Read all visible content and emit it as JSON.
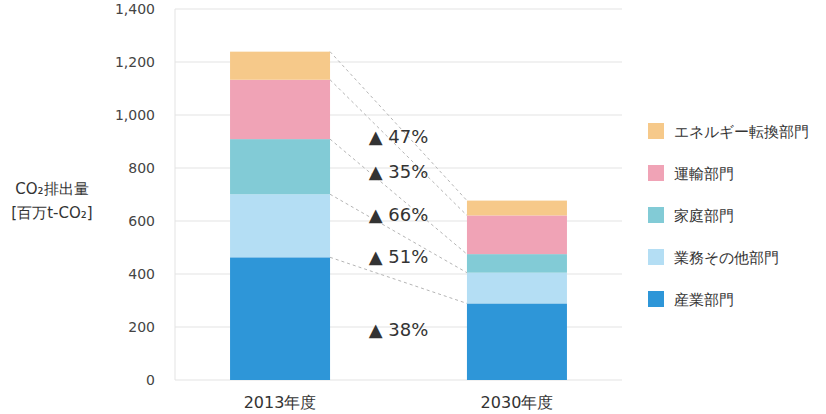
{
  "chart_data": {
    "type": "bar",
    "stacked": true,
    "grid": true,
    "legend": "right",
    "y_label": [
      "CO₂排出量",
      "[百万t-CO₂]"
    ],
    "categories": [
      "2013年度",
      "2030年度"
    ],
    "series": [
      {
        "name": "産業部門",
        "color": "#2e96d8",
        "values": [
          463,
          289
        ]
      },
      {
        "name": "業務その他部門",
        "color": "#b4def4",
        "values": [
          238,
          116
        ]
      },
      {
        "name": "家庭部門",
        "color": "#82cbd6",
        "values": [
          208,
          70
        ]
      },
      {
        "name": "運輸部門",
        "color": "#f0a3b6",
        "values": [
          224,
          146
        ]
      },
      {
        "name": "エネルギー転換部門",
        "color": "#f6c98a",
        "values": [
          106,
          56
        ]
      }
    ],
    "annotations": [
      "▲ 38%",
      "▲ 51%",
      "▲ 66%",
      "▲ 35%",
      "▲ 47%"
    ],
    "ylim": [
      0,
      1400
    ],
    "yticks": [
      0,
      200,
      400,
      600,
      800,
      {
        "value": 1000,
        "label": "1,000"
      },
      {
        "value": 1200,
        "label": "1,200"
      },
      {
        "value": 1400,
        "label": "1,400"
      }
    ]
  }
}
